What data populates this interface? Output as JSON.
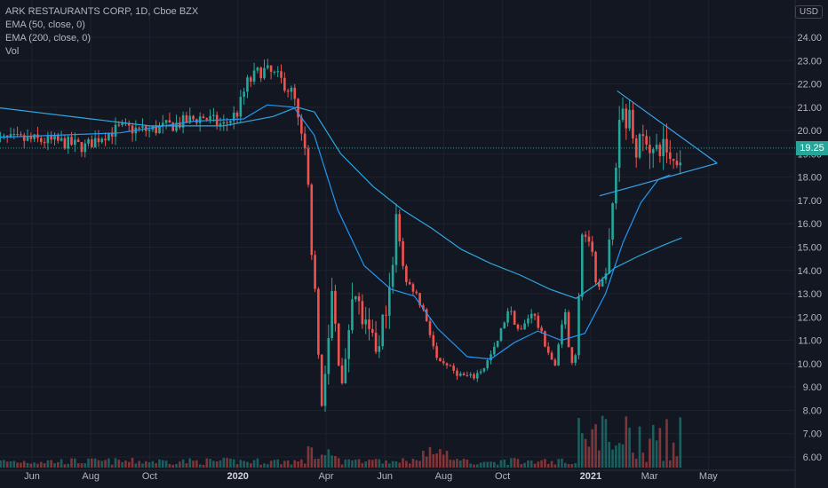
{
  "chart_data": {
    "type": "candlestick",
    "title": "ARK RESTAURANTS CORP, 1D, Cboe BZX",
    "indicators": [
      "EMA (50, close, 0)",
      "EMA (200, close, 0)",
      "Vol"
    ],
    "currency": "USD",
    "last_price": "19.25",
    "y_ticks": [
      "24.00",
      "23.00",
      "22.00",
      "21.00",
      "20.00",
      "19.00",
      "18.00",
      "17.00",
      "16.00",
      "15.00",
      "14.00",
      "13.00",
      "12.00",
      "11.00",
      "10.00",
      "9.00",
      "8.00",
      "7.00",
      "6.00"
    ],
    "ylim": [
      6,
      24
    ],
    "x_ticks": [
      {
        "label": "Jun",
        "bold": false
      },
      {
        "label": "Aug",
        "bold": false
      },
      {
        "label": "Oct",
        "bold": false
      },
      {
        "label": "2020",
        "bold": true
      },
      {
        "label": "Apr",
        "bold": false
      },
      {
        "label": "Jun",
        "bold": false
      },
      {
        "label": "Aug",
        "bold": false
      },
      {
        "label": "Oct",
        "bold": false
      },
      {
        "label": "2021",
        "bold": true
      },
      {
        "label": "Mar",
        "bold": false
      },
      {
        "label": "May",
        "bold": false
      }
    ],
    "xlim_months": [
      0,
      24.6
    ],
    "tick_month_positions": [
      0,
      2,
      4,
      7,
      10,
      12,
      14,
      16,
      19,
      21,
      23
    ],
    "price_keypoints": [
      [
        -1.3,
        19.6
      ],
      [
        0,
        19.6
      ],
      [
        1,
        19.5
      ],
      [
        1.8,
        19.3
      ],
      [
        2.4,
        19.8
      ],
      [
        3,
        20.1
      ],
      [
        4,
        20.0
      ],
      [
        5,
        20.3
      ],
      [
        5.8,
        20.6
      ],
      [
        6.5,
        20.2
      ],
      [
        7,
        20.8
      ],
      [
        7.3,
        22.0
      ],
      [
        7.8,
        22.6
      ],
      [
        8.2,
        22.4
      ],
      [
        8.6,
        22.0
      ],
      [
        8.9,
        21.5
      ],
      [
        9.1,
        20.0
      ],
      [
        9.3,
        19.0
      ],
      [
        9.5,
        15.5
      ],
      [
        9.7,
        11.0
      ],
      [
        9.85,
        8.5
      ],
      [
        10.0,
        9.5
      ],
      [
        10.2,
        13.0
      ],
      [
        10.4,
        10.5
      ],
      [
        10.6,
        9.0
      ],
      [
        10.9,
        13.5
      ],
      [
        11.2,
        12.0
      ],
      [
        11.5,
        11.0
      ],
      [
        11.8,
        10.5
      ],
      [
        12.0,
        12.5
      ],
      [
        12.2,
        13.0
      ],
      [
        12.4,
        16.3
      ],
      [
        12.7,
        13.5
      ],
      [
        13.0,
        13.2
      ],
      [
        13.4,
        12.0
      ],
      [
        13.8,
        10.0
      ],
      [
        14.2,
        9.8
      ],
      [
        14.6,
        9.5
      ],
      [
        15.0,
        9.4
      ],
      [
        15.4,
        9.9
      ],
      [
        15.8,
        10.8
      ],
      [
        16.2,
        12.4
      ],
      [
        16.6,
        11.3
      ],
      [
        17.0,
        12.3
      ],
      [
        17.4,
        11.0
      ],
      [
        17.8,
        9.8
      ],
      [
        18.1,
        12.6
      ],
      [
        18.3,
        10.0
      ],
      [
        18.5,
        10.5
      ],
      [
        18.7,
        15.7
      ],
      [
        19.0,
        15.2
      ],
      [
        19.2,
        13.0
      ],
      [
        19.4,
        13.5
      ],
      [
        19.6,
        14.5
      ],
      [
        19.8,
        17.5
      ],
      [
        20.0,
        21.0
      ],
      [
        20.3,
        20.5
      ],
      [
        20.6,
        19.2
      ],
      [
        20.9,
        19.8
      ],
      [
        21.2,
        18.8
      ],
      [
        21.5,
        19.5
      ],
      [
        21.8,
        18.6
      ],
      [
        22.1,
        19.3
      ]
    ],
    "ema50_keypoints": [
      [
        -1.3,
        19.7
      ],
      [
        3,
        19.9
      ],
      [
        5.5,
        20.4
      ],
      [
        7.2,
        20.5
      ],
      [
        8,
        21.1
      ],
      [
        8.9,
        21.0
      ],
      [
        9.6,
        19.8
      ],
      [
        10.4,
        16.6
      ],
      [
        11.3,
        14.2
      ],
      [
        12.2,
        13.2
      ],
      [
        13.0,
        12.9
      ],
      [
        13.8,
        11.5
      ],
      [
        14.8,
        10.3
      ],
      [
        15.6,
        10.2
      ],
      [
        16.4,
        10.9
      ],
      [
        17.2,
        11.4
      ],
      [
        18.0,
        11.0
      ],
      [
        18.8,
        11.3
      ],
      [
        19.5,
        13.0
      ],
      [
        20.1,
        15.2
      ],
      [
        20.7,
        16.9
      ],
      [
        21.3,
        17.9
      ],
      [
        21.7,
        18.1
      ]
    ],
    "ema200_keypoints": [
      [
        -1.3,
        21.0
      ],
      [
        2,
        20.5
      ],
      [
        4,
        20.2
      ],
      [
        6.5,
        20.2
      ],
      [
        8.2,
        20.6
      ],
      [
        9.0,
        21.0
      ],
      [
        9.6,
        20.8
      ],
      [
        10.5,
        19.0
      ],
      [
        11.6,
        17.6
      ],
      [
        12.6,
        16.6
      ],
      [
        13.6,
        15.8
      ],
      [
        14.6,
        14.9
      ],
      [
        15.6,
        14.3
      ],
      [
        16.6,
        13.8
      ],
      [
        17.6,
        13.2
      ],
      [
        18.5,
        12.8
      ],
      [
        19.2,
        13.4
      ],
      [
        19.8,
        14.1
      ],
      [
        20.6,
        14.6
      ],
      [
        21.5,
        15.1
      ],
      [
        22.1,
        15.4
      ]
    ],
    "triangle_lines": [
      {
        "from": [
          19.9,
          21.7
        ],
        "to": [
          23.3,
          18.6
        ]
      },
      {
        "from": [
          19.3,
          17.2
        ],
        "to": [
          23.3,
          18.6
        ]
      }
    ],
    "colors": {
      "background": "#131722",
      "grid": "#1e222d",
      "up": "#26a69a",
      "down": "#ef5350",
      "ema50": "#2196f3",
      "ema200": "#2ea7e0",
      "trendline": "#3aa2e8",
      "axis_text": "#b2b5be",
      "last_price_line": "#26a69a"
    }
  }
}
